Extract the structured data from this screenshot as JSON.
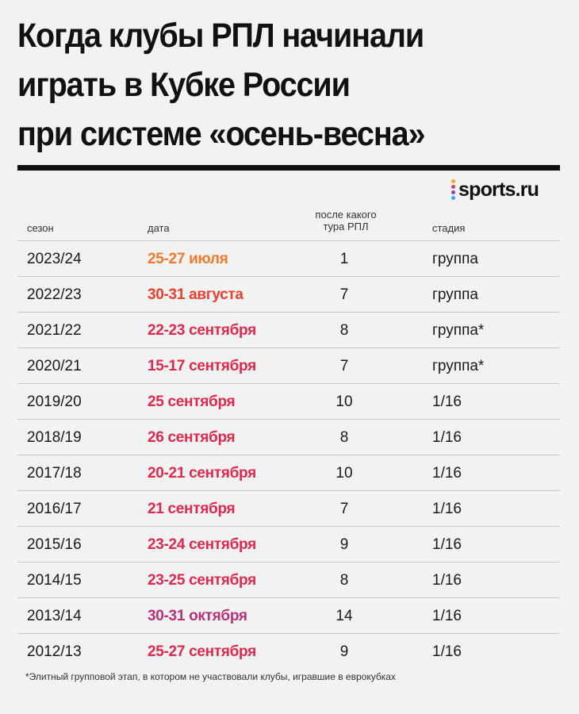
{
  "title": {
    "lines": [
      "Когда клубы РПЛ начинали",
      "играть в Кубке России",
      "при системе «осень-весна»"
    ]
  },
  "logo": {
    "text": "sports.ru",
    "dot_colors": [
      "#f5a623",
      "#e63a66",
      "#8e44ad",
      "#3aa6f5"
    ]
  },
  "columns": {
    "season": "сезон",
    "date": "дата",
    "round_line1": "после какого",
    "round_line2": "тура РПЛ",
    "stage": "стадия"
  },
  "rows": [
    {
      "season": "2023/24",
      "date": "25-27 июля",
      "date_color": "#f07a2a",
      "round": "1",
      "stage": "группа"
    },
    {
      "season": "2022/23",
      "date": "30-31 августа",
      "date_color": "#e8402d",
      "round": "7",
      "stage": "группа"
    },
    {
      "season": "2021/22",
      "date": "22-23 сентября",
      "date_color": "#e0284f",
      "round": "8",
      "stage": "группа*"
    },
    {
      "season": "2020/21",
      "date": "15-17 сентября",
      "date_color": "#e0284f",
      "round": "7",
      "stage": "группа*"
    },
    {
      "season": "2019/20",
      "date": "25 сентября",
      "date_color": "#e0284f",
      "round": "10",
      "stage": "1/16"
    },
    {
      "season": "2018/19",
      "date": "26 сентября",
      "date_color": "#e0284f",
      "round": "8",
      "stage": "1/16"
    },
    {
      "season": "2017/18",
      "date": "20-21 сентября",
      "date_color": "#e0284f",
      "round": "10",
      "stage": "1/16"
    },
    {
      "season": "2016/17",
      "date": "21 сентября",
      "date_color": "#e0284f",
      "round": "7",
      "stage": "1/16"
    },
    {
      "season": "2015/16",
      "date": "23-24 сентября",
      "date_color": "#e0284f",
      "round": "9",
      "stage": "1/16"
    },
    {
      "season": "2014/15",
      "date": "23-25 сентября",
      "date_color": "#e0284f",
      "round": "8",
      "stage": "1/16"
    },
    {
      "season": "2013/14",
      "date": "30-31 октября",
      "date_color": "#b83178",
      "round": "14",
      "stage": "1/16"
    },
    {
      "season": "2012/13",
      "date": "25-27 сентября",
      "date_color": "#e0284f",
      "round": "9",
      "stage": "1/16"
    }
  ],
  "footnote": "*Элитный групповой этап, в котором не участвовали клубы, игравшие в еврокубках"
}
